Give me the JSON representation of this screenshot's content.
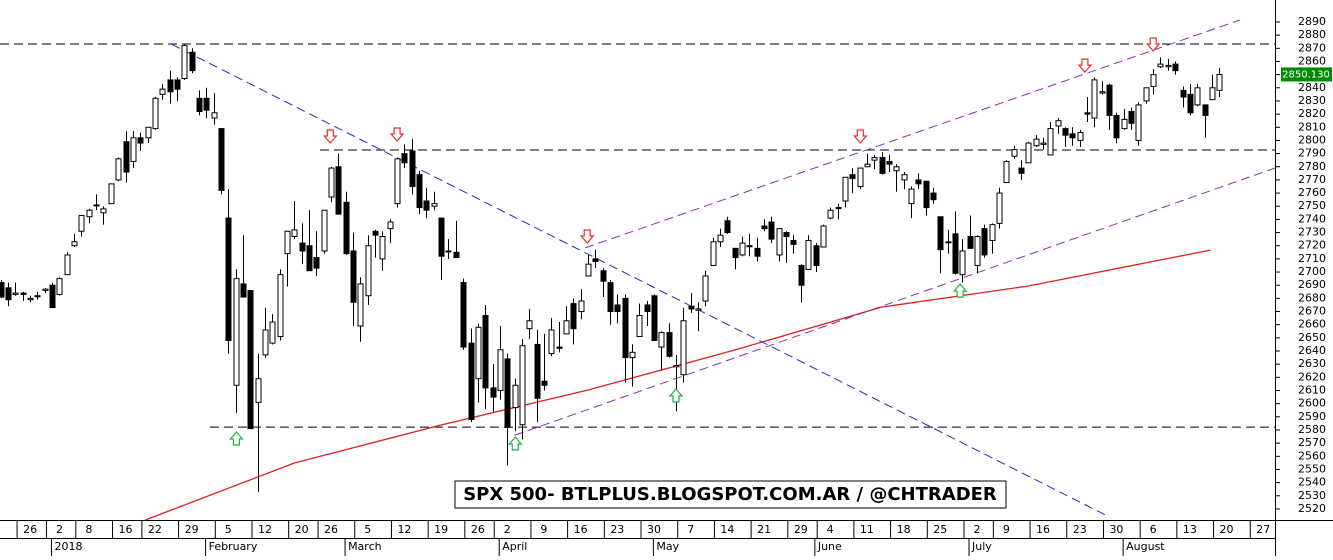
{
  "chart_data": {
    "type": "candlestick",
    "title": "SPX 500- BTLPLUS.BLOGSPOT.COM.AR / @CHTRADER",
    "candles": [
      [
        2692,
        2694,
        2680,
        2681
      ],
      [
        2688,
        2692,
        2674,
        2679
      ],
      [
        2683,
        2692,
        2682,
        2684
      ],
      [
        2684,
        2685,
        2678,
        2683
      ],
      [
        2679,
        2682,
        2677,
        2680
      ],
      [
        2682,
        2685,
        2679,
        2682
      ],
      [
        2686,
        2688,
        2684,
        2687
      ],
      [
        2690,
        2692,
        2673,
        2673
      ],
      [
        2683,
        2696,
        2682,
        2695
      ],
      [
        2698,
        2715,
        2698,
        2713
      ],
      [
        2720,
        2729,
        2719,
        2723
      ],
      [
        2731,
        2743,
        2727,
        2743
      ],
      [
        2742,
        2748,
        2737,
        2747
      ],
      [
        2751,
        2759,
        2747,
        2751
      ],
      [
        2745,
        2750,
        2736,
        2748
      ],
      [
        2752,
        2767,
        2752,
        2767
      ],
      [
        2770,
        2787,
        2769,
        2786
      ],
      [
        2799,
        2807,
        2768,
        2776
      ],
      [
        2784,
        2807,
        2779,
        2802
      ],
      [
        2802,
        2806,
        2792,
        2798
      ],
      [
        2802,
        2810,
        2798,
        2810
      ],
      [
        2809,
        2833,
        2808,
        2832
      ],
      [
        2835,
        2843,
        2831,
        2839
      ],
      [
        2846,
        2853,
        2828,
        2837
      ],
      [
        2846,
        2848,
        2830,
        2839
      ],
      [
        2847,
        2873,
        2846,
        2872
      ],
      [
        2867,
        2870,
        2851,
        2853
      ],
      [
        2832,
        2838,
        2819,
        2822
      ],
      [
        2832,
        2840,
        2817,
        2823
      ],
      [
        2817,
        2836,
        2812,
        2821
      ],
      [
        2809,
        2809,
        2759,
        2762
      ],
      [
        2741,
        2763,
        2638,
        2648
      ],
      [
        2614,
        2702,
        2593,
        2695
      ],
      [
        2691,
        2728,
        2681,
        2681
      ],
      [
        2686,
        2686,
        2581,
        2581
      ],
      [
        2601,
        2638,
        2533,
        2619
      ],
      [
        2637,
        2673,
        2635,
        2656
      ],
      [
        2646,
        2668,
        2645,
        2662
      ],
      [
        2651,
        2702,
        2648,
        2698
      ],
      [
        2714,
        2731,
        2689,
        2731
      ],
      [
        2727,
        2754,
        2725,
        2732
      ],
      [
        2722,
        2737,
        2706,
        2716
      ],
      [
        2720,
        2747,
        2701,
        2701
      ],
      [
        2711,
        2731,
        2697,
        2703
      ],
      [
        2716,
        2747,
        2714,
        2747
      ],
      [
        2757,
        2780,
        2753,
        2779
      ],
      [
        2780,
        2790,
        2744,
        2744
      ],
      [
        2753,
        2761,
        2713,
        2714
      ],
      [
        2716,
        2730,
        2659,
        2677
      ],
      [
        2659,
        2696,
        2647,
        2691
      ],
      [
        2682,
        2728,
        2675,
        2720
      ],
      [
        2731,
        2732,
        2711,
        2728
      ],
      [
        2710,
        2731,
        2701,
        2727
      ],
      [
        2733,
        2740,
        2722,
        2738
      ],
      [
        2752,
        2787,
        2749,
        2786
      ],
      [
        2790,
        2797,
        2779,
        2783
      ],
      [
        2792,
        2801,
        2759,
        2765
      ],
      [
        2774,
        2777,
        2744,
        2749
      ],
      [
        2754,
        2764,
        2741,
        2747
      ],
      [
        2750,
        2761,
        2747,
        2752
      ],
      [
        2741,
        2741,
        2694,
        2712
      ],
      [
        2716,
        2725,
        2710,
        2716
      ],
      [
        2715,
        2739,
        2711,
        2711
      ],
      [
        2692,
        2695,
        2641,
        2643
      ],
      [
        2646,
        2657,
        2586,
        2588
      ],
      [
        2619,
        2661,
        2601,
        2658
      ],
      [
        2667,
        2675,
        2596,
        2612
      ],
      [
        2612,
        2630,
        2594,
        2605
      ],
      [
        2610,
        2659,
        2603,
        2641
      ],
      [
        2634,
        2638,
        2553,
        2582
      ],
      [
        2597,
        2619,
        2579,
        2614
      ],
      [
        2584,
        2649,
        2573,
        2644
      ],
      [
        2657,
        2672,
        2649,
        2663
      ],
      [
        2645,
        2656,
        2586,
        2604
      ],
      [
        2617,
        2653,
        2610,
        2614
      ],
      [
        2638,
        2665,
        2636,
        2656
      ],
      [
        2643,
        2662,
        2639,
        2642
      ],
      [
        2653,
        2674,
        2653,
        2663
      ],
      [
        2676,
        2680,
        2645,
        2657
      ],
      [
        2670,
        2687,
        2664,
        2678
      ],
      [
        2697,
        2713,
        2697,
        2706
      ],
      [
        2710,
        2717,
        2703,
        2708
      ],
      [
        2701,
        2703,
        2681,
        2693
      ],
      [
        2692,
        2694,
        2660,
        2670
      ],
      [
        2675,
        2683,
        2661,
        2670
      ],
      [
        2680,
        2683,
        2616,
        2635
      ],
      [
        2635,
        2645,
        2613,
        2639
      ],
      [
        2651,
        2676,
        2651,
        2667
      ],
      [
        2675,
        2678,
        2659,
        2670
      ],
      [
        2682,
        2683,
        2648,
        2648
      ],
      [
        2643,
        2655,
        2625,
        2654
      ],
      [
        2654,
        2661,
        2635,
        2636
      ],
      [
        2628,
        2637,
        2594,
        2629
      ],
      [
        2622,
        2673,
        2616,
        2663
      ],
      [
        2674,
        2684,
        2669,
        2672
      ],
      [
        2671,
        2677,
        2655,
        2672
      ],
      [
        2678,
        2701,
        2674,
        2697
      ],
      [
        2705,
        2726,
        2705,
        2723
      ],
      [
        2723,
        2733,
        2719,
        2728
      ],
      [
        2739,
        2742,
        2729,
        2730
      ],
      [
        2718,
        2718,
        2702,
        2711
      ],
      [
        2713,
        2727,
        2712,
        2722
      ],
      [
        2720,
        2729,
        2712,
        2720
      ],
      [
        2718,
        2726,
        2708,
        2712
      ],
      [
        2735,
        2740,
        2731,
        2733
      ],
      [
        2738,
        2742,
        2722,
        2725
      ],
      [
        2713,
        2733,
        2708,
        2733
      ],
      [
        2730,
        2731,
        2707,
        2727
      ],
      [
        2724,
        2728,
        2714,
        2721
      ],
      [
        2705,
        2706,
        2677,
        2690
      ],
      [
        2702,
        2728,
        2702,
        2724
      ],
      [
        2720,
        2722,
        2700,
        2705
      ],
      [
        2719,
        2736,
        2719,
        2735
      ],
      [
        2741,
        2749,
        2740,
        2747
      ],
      [
        2749,
        2752,
        2740,
        2749
      ],
      [
        2754,
        2772,
        2749,
        2772
      ],
      [
        2774,
        2779,
        2760,
        2771
      ],
      [
        2765,
        2779,
        2763,
        2779
      ],
      [
        2780,
        2790,
        2780,
        2782
      ],
      [
        2785,
        2789,
        2778,
        2787
      ],
      [
        2787,
        2791,
        2774,
        2775
      ],
      [
        2784,
        2789,
        2776,
        2782
      ],
      [
        2777,
        2782,
        2761,
        2780
      ],
      [
        2770,
        2776,
        2763,
        2774
      ],
      [
        2752,
        2765,
        2741,
        2763
      ],
      [
        2770,
        2775,
        2763,
        2767
      ],
      [
        2769,
        2769,
        2743,
        2749
      ],
      [
        2760,
        2764,
        2752,
        2755
      ],
      [
        2742,
        2742,
        2699,
        2717
      ],
      [
        2723,
        2732,
        2714,
        2723
      ],
      [
        2729,
        2746,
        2698,
        2699
      ],
      [
        2698,
        2725,
        2692,
        2716
      ],
      [
        2727,
        2743,
        2718,
        2718
      ],
      [
        2705,
        2728,
        2699,
        2727
      ],
      [
        2733,
        2736,
        2711,
        2713
      ],
      [
        2724,
        2737,
        2714,
        2736
      ],
      [
        2737,
        2764,
        2733,
        2760
      ],
      [
        2768,
        2785,
        2768,
        2784
      ],
      [
        2788,
        2796,
        2786,
        2793
      ],
      [
        2779,
        2785,
        2770,
        2775
      ],
      [
        2783,
        2799,
        2783,
        2798
      ],
      [
        2796,
        2804,
        2795,
        2801
      ],
      [
        2797,
        2802,
        2793,
        2798
      ],
      [
        2789,
        2814,
        2789,
        2809
      ],
      [
        2811,
        2817,
        2805,
        2815
      ],
      [
        2809,
        2810,
        2795,
        2804
      ],
      [
        2805,
        2810,
        2796,
        2802
      ],
      [
        2800,
        2808,
        2795,
        2806
      ],
      [
        2821,
        2833,
        2814,
        2820
      ],
      [
        2817,
        2848,
        2810,
        2846
      ],
      [
        2836,
        2845,
        2835,
        2837
      ],
      [
        2842,
        2843,
        2808,
        2819
      ],
      [
        2819,
        2821,
        2798,
        2802
      ],
      [
        2809,
        2824,
        2808,
        2816
      ],
      [
        2822,
        2825,
        2808,
        2813
      ],
      [
        2800,
        2829,
        2796,
        2827
      ],
      [
        2830,
        2840,
        2828,
        2840
      ],
      [
        2841,
        2854,
        2835,
        2850
      ],
      [
        2856,
        2863,
        2855,
        2858
      ],
      [
        2856,
        2862,
        2853,
        2857
      ],
      [
        2858,
        2860,
        2850,
        2853
      ],
      [
        2838,
        2841,
        2825,
        2833
      ],
      [
        2835,
        2843,
        2819,
        2821
      ],
      [
        2827,
        2843,
        2826,
        2840
      ],
      [
        2827,
        2827,
        2802,
        2819
      ],
      [
        2831,
        2850,
        2831,
        2840
      ],
      [
        2838,
        2855,
        2833,
        2850.13
      ]
    ],
    "xlim": [
      -0.1,
      173.6
    ],
    "ylim": [
      2511.6,
      2906.7
    ],
    "yticks": [
      2520,
      2530,
      2540,
      2550,
      2560,
      2570,
      2580,
      2590,
      2600,
      2610,
      2620,
      2630,
      2640,
      2650,
      2660,
      2670,
      2680,
      2690,
      2700,
      2710,
      2720,
      2730,
      2740,
      2750,
      2760,
      2770,
      2780,
      2790,
      2800,
      2810,
      2820,
      2830,
      2840,
      2850,
      2860,
      2870,
      2880,
      2890
    ],
    "xticks": [
      {
        "value": 4,
        "label": "26"
      },
      {
        "value": 8,
        "label": "2"
      },
      {
        "value": 12,
        "label": "8"
      },
      {
        "value": 17,
        "label": "16"
      },
      {
        "value": 21,
        "label": "22"
      },
      {
        "value": 26,
        "label": "29"
      },
      {
        "value": 31,
        "label": "5"
      },
      {
        "value": 36,
        "label": "12"
      },
      {
        "value": 41,
        "label": "20"
      },
      {
        "value": 45,
        "label": "26"
      },
      {
        "value": 50,
        "label": "5"
      },
      {
        "value": 55,
        "label": "12"
      },
      {
        "value": 60,
        "label": "19"
      },
      {
        "value": 65,
        "label": "26"
      },
      {
        "value": 69,
        "label": "2"
      },
      {
        "value": 74,
        "label": "9"
      },
      {
        "value": 79,
        "label": "16"
      },
      {
        "value": 84,
        "label": "23"
      },
      {
        "value": 89,
        "label": "30"
      },
      {
        "value": 94,
        "label": "7"
      },
      {
        "value": 99,
        "label": "14"
      },
      {
        "value": 104,
        "label": "21"
      },
      {
        "value": 109,
        "label": "29"
      },
      {
        "value": 113,
        "label": "4"
      },
      {
        "value": 118,
        "label": "11"
      },
      {
        "value": 123,
        "label": "18"
      },
      {
        "value": 128,
        "label": "25"
      },
      {
        "value": 133,
        "label": "2"
      },
      {
        "value": 137,
        "label": "9"
      },
      {
        "value": 142,
        "label": "16"
      },
      {
        "value": 147,
        "label": "23"
      },
      {
        "value": 152,
        "label": "30"
      },
      {
        "value": 157,
        "label": "6"
      },
      {
        "value": 162,
        "label": "13"
      },
      {
        "value": 167,
        "label": "20"
      },
      {
        "value": 172,
        "label": "27"
      }
    ],
    "month_ticks": [
      {
        "value": 8,
        "label": "2018"
      },
      {
        "value": 29,
        "label": "February"
      },
      {
        "value": 48,
        "label": "March"
      },
      {
        "value": 69,
        "label": "April"
      },
      {
        "value": 90,
        "label": "May"
      },
      {
        "value": 112,
        "label": "June"
      },
      {
        "value": 133,
        "label": "July"
      },
      {
        "value": 154,
        "label": "August"
      }
    ],
    "last_price": {
      "value": 2850.13,
      "label": "2850.130"
    },
    "up_color": "#ffffff",
    "down_color": "#000000",
    "hlines": [
      {
        "y": 2873.3,
        "x0": -0.1
      },
      {
        "y": 2792.7,
        "x0": 43.5
      },
      {
        "y": 2582.2,
        "x0": 28.5
      }
    ],
    "trendlines": [
      {
        "color": "#2030c0",
        "x": [
          23.3,
          150.5
        ],
        "y": [
          2873,
          2515.4
        ]
      },
      {
        "color": "#8a30b0",
        "x": [
          79.6,
          168.8
        ],
        "y": [
          2718.3,
          2891.5
        ]
      },
      {
        "color": "#8a30b0",
        "x": [
          70,
          173.6
        ],
        "y": [
          2576,
          2779
        ]
      }
    ],
    "moving_average": {
      "color": "#e02020",
      "x": [
        19.7,
        40,
        60,
        80,
        100,
        120,
        140,
        164.8
      ],
      "y": [
        2511.6,
        2554.9,
        2583.8,
        2610.4,
        2640.8,
        2673.4,
        2689.4,
        2716.7
      ]
    },
    "markers": [
      {
        "x": 44.9,
        "y": 2802.6,
        "kind": "down",
        "color": "#e03030"
      },
      {
        "x": 54,
        "y": 2804.1,
        "kind": "down",
        "color": "#e03030"
      },
      {
        "x": 79.9,
        "y": 2726.6,
        "kind": "down",
        "color": "#e03030"
      },
      {
        "x": 117.1,
        "y": 2802.6,
        "kind": "down",
        "color": "#e03030"
      },
      {
        "x": 147.7,
        "y": 2856.5,
        "kind": "down",
        "color": "#e03030"
      },
      {
        "x": 157,
        "y": 2872.5,
        "kind": "down",
        "color": "#e03030"
      },
      {
        "x": 32.1,
        "y": 2573.9,
        "kind": "up",
        "color": "#20b040"
      },
      {
        "x": 70.1,
        "y": 2570.1,
        "kind": "up",
        "color": "#20b040"
      },
      {
        "x": 92,
        "y": 2606.6,
        "kind": "up",
        "color": "#20b040"
      },
      {
        "x": 130.7,
        "y": 2686.3,
        "kind": "up",
        "color": "#20b040"
      }
    ]
  }
}
